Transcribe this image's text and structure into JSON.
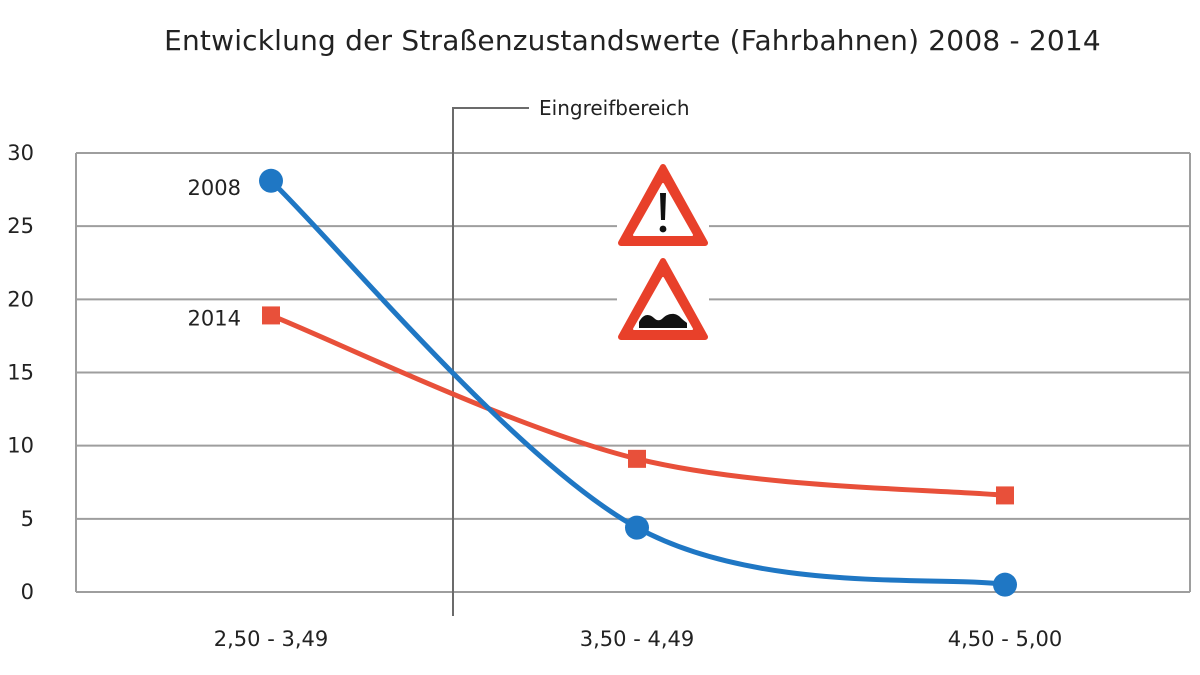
{
  "chart_data": {
    "type": "line",
    "title": "Entwicklung der Straßenzustandswerte (Fahrbahnen) 2008 - 2014",
    "xlabel": "",
    "ylabel": "",
    "categories": [
      "2,50 - 3,49",
      "3,50 - 4,49",
      "4,50 - 5,00"
    ],
    "ylim": [
      0,
      30
    ],
    "yticks": [
      0,
      5,
      10,
      15,
      20,
      25,
      30
    ],
    "grid": true,
    "series": [
      {
        "name": "2008",
        "values": [
          28.1,
          4.4,
          0.5
        ],
        "color": "#1f77c4",
        "marker": "circle"
      },
      {
        "name": "2014",
        "values": [
          18.9,
          9.1,
          6.6
        ],
        "color": "#e8503a",
        "marker": "square"
      }
    ],
    "annotations": [
      {
        "label": "Eingreifbereich",
        "type": "vertical-marker",
        "position": "between 2,50 - 3,49 and 3,50 - 4,49"
      },
      {
        "icon": "warning-triangle-exclamation-icon"
      },
      {
        "icon": "warning-triangle-uneven-road-icon"
      }
    ]
  }
}
